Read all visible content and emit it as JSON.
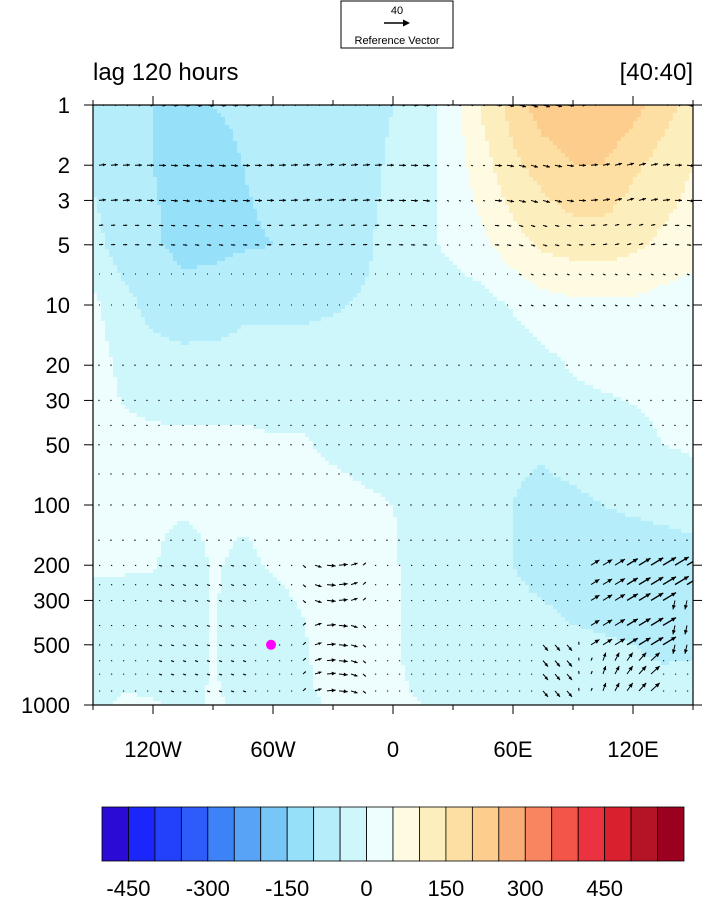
{
  "chart_data": {
    "type": "heatmap",
    "title_left": "lag 120 hours",
    "title_right": "[40:40]",
    "reference_vector": {
      "magnitude_label": "40",
      "label": "Reference Vector"
    },
    "x_axis": {
      "range": [
        -150,
        150
      ],
      "ticks": [
        {
          "value": -120,
          "label": "120W"
        },
        {
          "value": -60,
          "label": "60W"
        },
        {
          "value": 0,
          "label": "0"
        },
        {
          "value": 60,
          "label": "60E"
        },
        {
          "value": 120,
          "label": "120E"
        }
      ]
    },
    "y_axis": {
      "scale": "log",
      "reversed": true,
      "range": [
        1,
        1000
      ],
      "ticks": [
        {
          "value": 1,
          "label": "1"
        },
        {
          "value": 2,
          "label": "2"
        },
        {
          "value": 3,
          "label": "3"
        },
        {
          "value": 5,
          "label": "5"
        },
        {
          "value": 10,
          "label": "10"
        },
        {
          "value": 20,
          "label": "20"
        },
        {
          "value": 30,
          "label": "30"
        },
        {
          "value": 50,
          "label": "50"
        },
        {
          "value": 100,
          "label": "100"
        },
        {
          "value": 200,
          "label": "200"
        },
        {
          "value": 300,
          "label": "300"
        },
        {
          "value": 500,
          "label": "500"
        },
        {
          "value": 1000,
          "label": "1000"
        }
      ]
    },
    "marker": {
      "lon": -61,
      "pressure": 500,
      "color": "#ff00ff"
    },
    "colorbar": {
      "colors": [
        "#2a0ad4",
        "#1c26fa",
        "#2340fa",
        "#2e5cfa",
        "#3d82f7",
        "#58a3f5",
        "#78c6f7",
        "#96e0fa",
        "#b5edfa",
        "#cef7fc",
        "#eefdfd",
        "#fefbe2",
        "#fdeebe",
        "#fddfa4",
        "#fccd8d",
        "#fbad78",
        "#f88560",
        "#f35649",
        "#ea3240",
        "#d8202f",
        "#b51427",
        "#9c0020"
      ],
      "tick_labels": [
        {
          "boundary": 1,
          "label": "-450"
        },
        {
          "boundary": 4,
          "label": "-300"
        },
        {
          "boundary": 7,
          "label": "-150"
        },
        {
          "boundary": 10,
          "label": "0"
        },
        {
          "boundary": 13,
          "label": "150"
        },
        {
          "boundary": 16,
          "label": "300"
        },
        {
          "boundary": 19,
          "label": "450"
        }
      ]
    },
    "field": {
      "lons": [
        -150,
        -135,
        -120,
        -105,
        -90,
        -75,
        -60,
        -45,
        -30,
        -15,
        0,
        15,
        30,
        45,
        60,
        75,
        90,
        105,
        120,
        135,
        150
      ],
      "levels": [
        1,
        2,
        5,
        10,
        20,
        50,
        100,
        200,
        500,
        1000
      ],
      "values": [
        [
          -90,
          -100,
          -100,
          -105,
          -100,
          -95,
          -90,
          -90,
          -85,
          -75,
          -50,
          -25,
          30,
          110,
          170,
          230,
          250,
          250,
          220,
          170,
          130
        ],
        [
          -60,
          -90,
          -100,
          -110,
          -110,
          -100,
          -90,
          -90,
          -85,
          -70,
          -40,
          -20,
          25,
          80,
          140,
          170,
          200,
          200,
          160,
          130,
          100
        ],
        [
          -30,
          -80,
          -95,
          -110,
          -110,
          -105,
          -100,
          -95,
          -80,
          -60,
          -30,
          -15,
          15,
          40,
          80,
          110,
          120,
          125,
          110,
          90,
          75
        ],
        [
          10,
          -30,
          -70,
          -85,
          -80,
          -60,
          -60,
          -60,
          -55,
          -45,
          -40,
          -40,
          -30,
          -20,
          5,
          30,
          40,
          40,
          40,
          30,
          20
        ],
        [
          20,
          -10,
          -25,
          -30,
          -30,
          -30,
          -30,
          -30,
          -25,
          -25,
          -25,
          -30,
          -40,
          -40,
          -30,
          -15,
          5,
          10,
          10,
          10,
          10
        ],
        [
          10,
          10,
          10,
          10,
          10,
          10,
          5,
          5,
          -10,
          -20,
          -25,
          -30,
          -35,
          -40,
          -45,
          -45,
          -30,
          -20,
          -10,
          0,
          5
        ],
        [
          10,
          10,
          10,
          10,
          10,
          10,
          10,
          15,
          20,
          10,
          0,
          -15,
          -25,
          -35,
          -50,
          -60,
          -60,
          -50,
          -40,
          -30,
          -20
        ],
        [
          5,
          5,
          5,
          -30,
          5,
          -10,
          5,
          20,
          50,
          30,
          5,
          -20,
          -30,
          -40,
          -50,
          -70,
          -80,
          -85,
          -90,
          -90,
          -80
        ],
        [
          -30,
          -35,
          -40,
          -40,
          5,
          -40,
          -40,
          -10,
          40,
          20,
          5,
          -15,
          -20,
          -25,
          -25,
          -25,
          -40,
          -45,
          -50,
          -70,
          -70
        ],
        [
          -20,
          10,
          5,
          -10,
          5,
          -5,
          -10,
          -10,
          5,
          5,
          5,
          0,
          -10,
          -15,
          -15,
          -10,
          -10,
          -10,
          -10,
          -5,
          0
        ]
      ]
    }
  }
}
